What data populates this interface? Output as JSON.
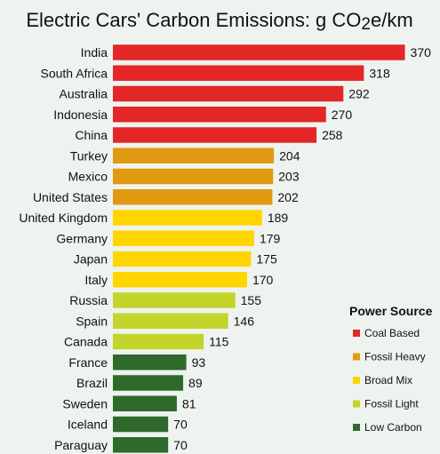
{
  "colors": {
    "background": "#eef3ef",
    "Coal Based": "#e32626",
    "Fossil Heavy": "#e09a12",
    "Broad Mix": "#ffd500",
    "Fossil Light": "#c3d42a",
    "Low Carbon": "#2f6a2c"
  },
  "chart_data": {
    "type": "bar",
    "orientation": "horizontal",
    "title": "Electric Cars' Carbon Emissions: g CO2e/km",
    "title_parts": {
      "before": "Electric Cars' Carbon Emissions: g CO",
      "sub": "2",
      "after": "e/km"
    },
    "categories": [
      "India",
      "South Africa",
      "Australia",
      "Indonesia",
      "China",
      "Turkey",
      "Mexico",
      "United States",
      "United Kingdom",
      "Germany",
      "Japan",
      "Italy",
      "Russia",
      "Spain",
      "Canada",
      "France",
      "Brazil",
      "Sweden",
      "Iceland",
      "Paraguay"
    ],
    "values": [
      370,
      318,
      292,
      270,
      258,
      204,
      203,
      202,
      189,
      179,
      175,
      170,
      155,
      146,
      115,
      93,
      89,
      81,
      70,
      70
    ],
    "groups": [
      "Coal Based",
      "Coal Based",
      "Coal Based",
      "Coal Based",
      "Coal Based",
      "Fossil Heavy",
      "Fossil Heavy",
      "Fossil Heavy",
      "Broad Mix",
      "Broad Mix",
      "Broad Mix",
      "Broad Mix",
      "Fossil Light",
      "Fossil Light",
      "Fossil Light",
      "Low Carbon",
      "Low Carbon",
      "Low Carbon",
      "Low Carbon",
      "Low Carbon"
    ],
    "xlim": [
      0,
      370
    ],
    "grid": false,
    "legend": {
      "title": "Power Source",
      "placement": "bottom-right",
      "entries": [
        "Coal Based",
        "Fossil Heavy",
        "Broad Mix",
        "Fossil Light",
        "Low Carbon"
      ]
    }
  }
}
